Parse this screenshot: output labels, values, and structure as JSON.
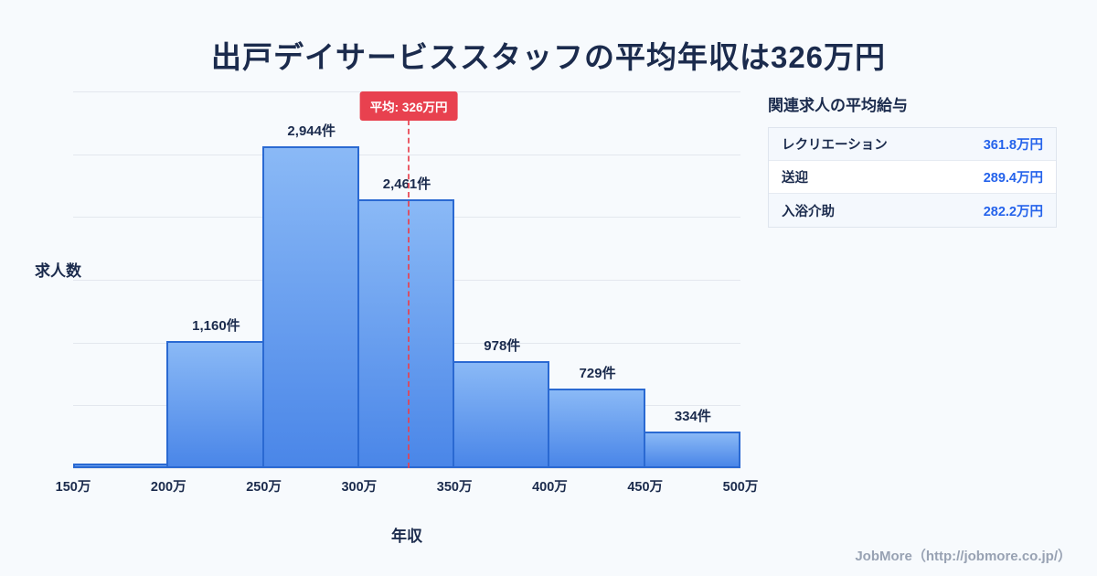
{
  "title": "出戸デイサービススタッフの平均年収は326万円",
  "chart_data": {
    "type": "bar",
    "title": "出戸デイサービススタッフの平均年収は326万円",
    "xlabel": "年収",
    "ylabel": "求人数",
    "x_ticks": [
      "150万",
      "200万",
      "250万",
      "300万",
      "350万",
      "400万",
      "450万",
      "500万"
    ],
    "x_range": [
      150,
      500
    ],
    "ylim": [
      0,
      3450
    ],
    "grid": true,
    "bins": [
      {
        "range": "150万-200万",
        "count": 40,
        "label": ""
      },
      {
        "range": "200万-250万",
        "count": 1160,
        "label": "1,160件"
      },
      {
        "range": "250万-300万",
        "count": 2944,
        "label": "2,944件"
      },
      {
        "range": "300万-350万",
        "count": 2461,
        "label": "2,461件"
      },
      {
        "range": "350万-400万",
        "count": 978,
        "label": "978件"
      },
      {
        "range": "400万-450万",
        "count": 729,
        "label": "729件"
      },
      {
        "range": "450万-500万",
        "count": 334,
        "label": "334件"
      }
    ],
    "average": {
      "value": 326,
      "label": "平均: 326万円"
    }
  },
  "related": {
    "heading": "関連求人の平均給与",
    "rows": [
      {
        "name": "レクリエーション",
        "value": "361.8万円"
      },
      {
        "name": "送迎",
        "value": "289.4万円"
      },
      {
        "name": "入浴介助",
        "value": "282.2万円"
      }
    ]
  },
  "footer": {
    "text": "JobMore（http://jobmore.co.jp/）"
  },
  "colors": {
    "title": "#1b2b4d",
    "background": "#f7fafd",
    "grid": "#e3e7ee",
    "bar_top": "#8ab9f6",
    "bar_bottom": "#4a86e8",
    "bar_border": "#2a69d2",
    "average_red": "#e8414f",
    "value_blue": "#2563eb",
    "footer_gray": "#98a2b3"
  }
}
